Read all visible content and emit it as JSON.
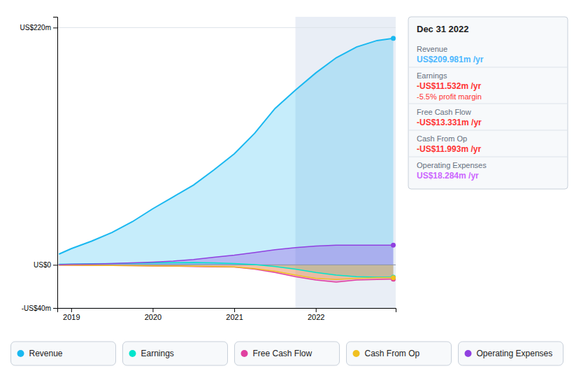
{
  "chart_data": {
    "type": "area",
    "x": [
      2018.85,
      2019.0,
      2019.25,
      2019.5,
      2019.75,
      2020.0,
      2020.25,
      2020.5,
      2020.75,
      2021.0,
      2021.25,
      2021.5,
      2021.75,
      2022.0,
      2022.25,
      2022.5,
      2022.75,
      2022.95
    ],
    "series": [
      {
        "name": "Revenue",
        "color": "#1ab8f0",
        "values": [
          10,
          15,
          22,
          30,
          40,
          52,
          63,
          74,
          88,
          103,
          122,
          145,
          162,
          178,
          192,
          202,
          208,
          210
        ]
      },
      {
        "name": "Earnings",
        "color": "#00e5cc",
        "values": [
          0.5,
          0.8,
          1.0,
          1.2,
          1.5,
          1.8,
          2.0,
          2.2,
          1.8,
          1.2,
          0.2,
          -1.5,
          -4.0,
          -7.0,
          -9.5,
          -11.0,
          -11.5,
          -11.5
        ]
      },
      {
        "name": "Free Cash Flow",
        "color": "#e040a0",
        "values": [
          -0.3,
          -0.4,
          -0.5,
          -0.6,
          -0.8,
          -1.0,
          -1.2,
          -1.5,
          -1.8,
          -2.0,
          -4.0,
          -7.0,
          -11.0,
          -14.0,
          -16.0,
          -14.0,
          -13.5,
          -13.3
        ]
      },
      {
        "name": "Cash From Op",
        "color": "#f0c020",
        "values": [
          -0.2,
          -0.3,
          -0.4,
          -0.5,
          -0.7,
          -0.9,
          -1.0,
          -1.2,
          -1.5,
          -1.8,
          -3.5,
          -6.0,
          -9.5,
          -12.5,
          -13.5,
          -12.5,
          -12.0,
          -12.0
        ]
      },
      {
        "name": "Operating Expenses",
        "color": "#9040e0",
        "values": [
          0.3,
          0.5,
          0.8,
          1.2,
          1.8,
          2.5,
          3.5,
          5.0,
          7.0,
          9.0,
          11.5,
          14.0,
          16.0,
          17.5,
          18.2,
          18.3,
          18.3,
          18.3
        ]
      }
    ],
    "xlim": [
      2018.83,
      2022.98
    ],
    "xticks": [
      2019,
      2020,
      2021,
      2022
    ],
    "ylim": [
      -40,
      230
    ],
    "yticks": [
      {
        "value": -40,
        "label": "-US$40m"
      },
      {
        "value": 0,
        "label": "US$0"
      },
      {
        "value": 220,
        "label": "US$220m"
      }
    ],
    "shaded_x": [
      2021.75,
      2022.98
    ],
    "grid": true,
    "legend": "bottom",
    "info_box": {
      "title": "Dec 31 2022",
      "rows": [
        {
          "label": "Revenue",
          "value": "US$209.981m /yr",
          "color": "#4db8ff"
        },
        {
          "label": "Earnings",
          "value": "-US$11.532m /yr",
          "color": "#ff3333",
          "extra": "-5.5% profit margin",
          "extra_color": "#ff3333"
        },
        {
          "label": "Free Cash Flow",
          "value": "-US$13.331m /yr",
          "color": "#ff3333"
        },
        {
          "label": "Cash From Op",
          "value": "-US$11.993m /yr",
          "color": "#ff3333"
        },
        {
          "label": "Operating Expenses",
          "value": "US$18.284m /yr",
          "color": "#cc66ff"
        }
      ]
    }
  }
}
